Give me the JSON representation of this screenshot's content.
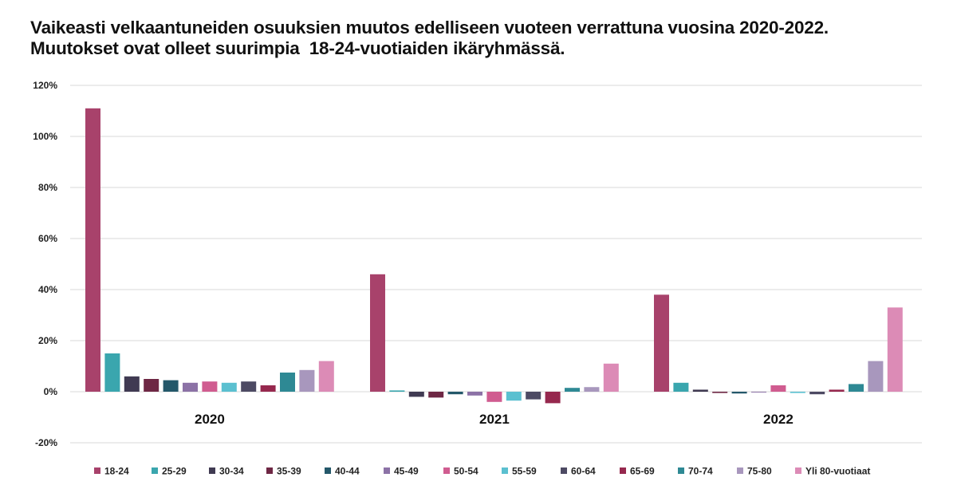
{
  "title_line1": "Vaikeasti velkaantuneiden osuuksien muutos edelliseen vuoteen verrattuna vuosina 2020-2022.",
  "title_line2": "Muutokset ovat olleet suurimpia  18-24-vuotiaiden ikäryhmässä.",
  "chart_data": {
    "type": "bar",
    "title": "Vaikeasti velkaantuneiden osuuksien muutos edelliseen vuoteen verrattuna vuosina 2020-2022. Muutokset ovat olleet suurimpia  18-24-vuotiaiden ikäryhmässä.",
    "categories": [
      "2020",
      "2021",
      "2022"
    ],
    "ylim": [
      -20,
      120
    ],
    "yticks": [
      -20,
      0,
      20,
      40,
      60,
      80,
      100,
      120
    ],
    "ytick_labels": [
      "-20%",
      "0%",
      "20%",
      "40%",
      "60%",
      "80%",
      "100%",
      "120%"
    ],
    "grid": true,
    "legend_position": "bottom",
    "xlabel": "",
    "ylabel": "",
    "series": [
      {
        "name": "18-24",
        "color": "#A8426B",
        "values": [
          111,
          46,
          38
        ]
      },
      {
        "name": "25-29",
        "color": "#3AA6AE",
        "values": [
          15,
          0.5,
          3.5
        ]
      },
      {
        "name": "30-34",
        "color": "#403A52",
        "values": [
          6,
          -2,
          0.8
        ]
      },
      {
        "name": "35-39",
        "color": "#6E2744",
        "values": [
          5,
          -2.3,
          -0.5
        ]
      },
      {
        "name": "40-44",
        "color": "#24586A",
        "values": [
          4.5,
          -1,
          -0.7
        ]
      },
      {
        "name": "45-49",
        "color": "#8C72A6",
        "values": [
          3.5,
          -1.5,
          -0.3
        ]
      },
      {
        "name": "50-54",
        "color": "#D05C90",
        "values": [
          4,
          -4,
          2.5
        ]
      },
      {
        "name": "55-59",
        "color": "#5BC0D0",
        "values": [
          3.5,
          -3.5,
          -0.5
        ]
      },
      {
        "name": "60-64",
        "color": "#4D4A63",
        "values": [
          4,
          -3,
          -1
        ]
      },
      {
        "name": "65-69",
        "color": "#96284E",
        "values": [
          2.5,
          -4.5,
          0.8
        ]
      },
      {
        "name": "70-74",
        "color": "#2E8994",
        "values": [
          7.5,
          1.5,
          3
        ]
      },
      {
        "name": "75-80",
        "color": "#A897BD",
        "values": [
          8.5,
          1.8,
          12
        ]
      },
      {
        "name": "Yli 80-vuotiaat",
        "color": "#DC8BB6",
        "values": [
          12,
          11,
          33
        ]
      }
    ]
  }
}
